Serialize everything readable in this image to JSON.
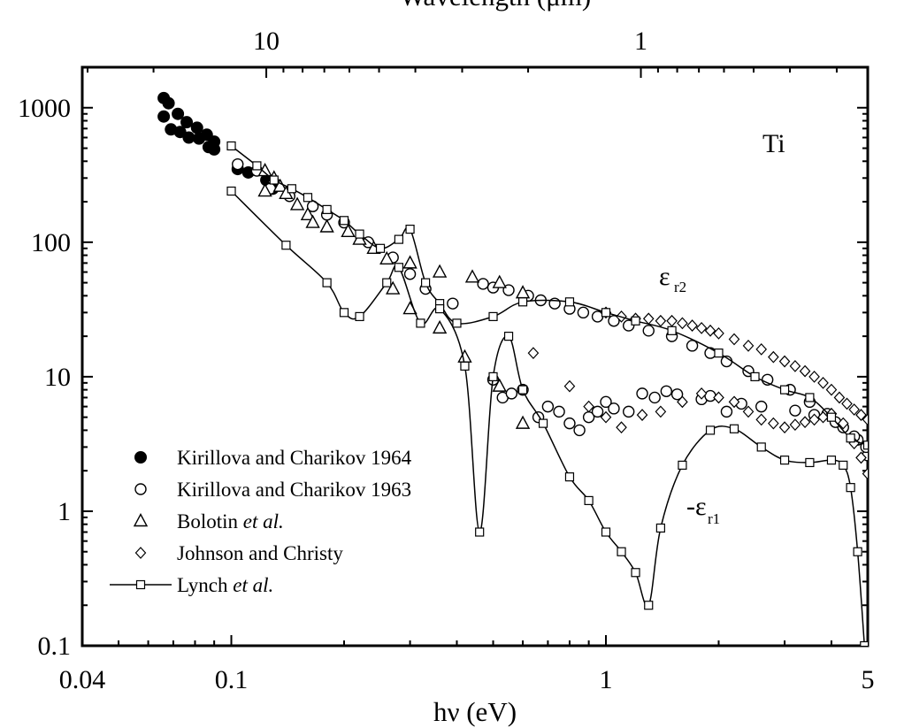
{
  "chart_data": {
    "type": "scatter",
    "title": "",
    "element_label": "Ti",
    "xlabel": "hν (eV)",
    "x2label": "Wavelength (μm)",
    "ylabel": "",
    "xscale": "log",
    "yscale": "log",
    "xlim": [
      0.04,
      5
    ],
    "ylim": [
      0.1,
      2000
    ],
    "x_ticks": [
      {
        "value": 0.04,
        "label": "0.04"
      },
      {
        "value": 0.1,
        "label": "0.1"
      },
      {
        "value": 1,
        "label": "1"
      },
      {
        "value": 5,
        "label": "5"
      }
    ],
    "x2_ticks": [
      {
        "value": 10,
        "label": "10"
      },
      {
        "value": 1,
        "label": "1"
      }
    ],
    "y_ticks": [
      {
        "value": 0.1,
        "label": "0.1"
      },
      {
        "value": 1,
        "label": "1"
      },
      {
        "value": 10,
        "label": "10"
      },
      {
        "value": 100,
        "label": "100"
      },
      {
        "value": 1000,
        "label": "1000"
      }
    ],
    "annotations": {
      "eps_r2": {
        "base": "ε",
        "sub": "r2"
      },
      "neg_eps_r1": {
        "base": "-ε",
        "sub": "r1"
      }
    },
    "legend_position": "lower-left",
    "series": [
      {
        "name": "Kirillova and Charikov 1964",
        "marker": "filled-circle",
        "line": false,
        "points": [
          [
            0.066,
            1180
          ],
          [
            0.068,
            1080
          ],
          [
            0.072,
            900
          ],
          [
            0.076,
            780
          ],
          [
            0.081,
            710
          ],
          [
            0.086,
            630
          ],
          [
            0.09,
            560
          ],
          [
            0.066,
            860
          ],
          [
            0.069,
            690
          ],
          [
            0.073,
            660
          ],
          [
            0.077,
            600
          ],
          [
            0.082,
            590
          ],
          [
            0.087,
            510
          ],
          [
            0.09,
            490
          ],
          [
            0.104,
            350
          ],
          [
            0.111,
            330
          ],
          [
            0.124,
            290
          ],
          [
            0.129,
            250
          ]
        ]
      },
      {
        "name": "Kirillova and Charikov 1963",
        "marker": "open-circle",
        "line": false,
        "points": [
          [
            0.104,
            380
          ],
          [
            0.117,
            340
          ],
          [
            0.127,
            250
          ],
          [
            0.143,
            220
          ],
          [
            0.165,
            185
          ],
          [
            0.18,
            160
          ],
          [
            0.2,
            140
          ],
          [
            0.232,
            100
          ],
          [
            0.27,
            77
          ],
          [
            0.3,
            58
          ],
          [
            0.33,
            45
          ],
          [
            0.39,
            35
          ],
          [
            0.47,
            49
          ],
          [
            0.5,
            46
          ],
          [
            0.55,
            44
          ],
          [
            0.62,
            40
          ],
          [
            0.67,
            37
          ],
          [
            0.73,
            35
          ],
          [
            0.8,
            32
          ],
          [
            0.87,
            30
          ],
          [
            0.95,
            28
          ],
          [
            1.05,
            26
          ],
          [
            1.15,
            24
          ],
          [
            1.3,
            22
          ],
          [
            1.5,
            20
          ],
          [
            1.7,
            17
          ],
          [
            1.9,
            15
          ],
          [
            2.1,
            13
          ],
          [
            2.4,
            11
          ],
          [
            2.7,
            9.5
          ],
          [
            3.1,
            8
          ],
          [
            3.5,
            6.5
          ],
          [
            3.9,
            5.3
          ],
          [
            4.3,
            4.2
          ],
          [
            4.7,
            3.4
          ],
          [
            5,
            2.6
          ],
          [
            0.5,
            9.5
          ],
          [
            0.53,
            7
          ],
          [
            0.56,
            7.5
          ],
          [
            0.6,
            8
          ],
          [
            0.66,
            5
          ],
          [
            0.7,
            6
          ],
          [
            0.75,
            5.5
          ],
          [
            0.8,
            4.5
          ],
          [
            0.85,
            4
          ],
          [
            0.9,
            5
          ],
          [
            0.95,
            5.5
          ],
          [
            1.0,
            6.5
          ],
          [
            1.05,
            5.8
          ],
          [
            1.15,
            5.5
          ],
          [
            1.25,
            7.5
          ],
          [
            1.35,
            7
          ],
          [
            1.45,
            7.8
          ],
          [
            1.55,
            7.4
          ],
          [
            1.8,
            6.8
          ],
          [
            1.9,
            7.2
          ],
          [
            2.1,
            5.5
          ],
          [
            2.3,
            6.3
          ],
          [
            2.6,
            6
          ],
          [
            3.2,
            5.6
          ],
          [
            3.6,
            5.2
          ],
          [
            4.1,
            4.6
          ],
          [
            4.6,
            3.6
          ],
          [
            4.95,
            3
          ]
        ]
      },
      {
        "name": "Bolotin et al.",
        "marker": "open-triangle",
        "line": false,
        "points": [
          [
            0.123,
            340
          ],
          [
            0.123,
            240
          ],
          [
            0.13,
            300
          ],
          [
            0.135,
            260
          ],
          [
            0.14,
            230
          ],
          [
            0.15,
            190
          ],
          [
            0.16,
            160
          ],
          [
            0.165,
            140
          ],
          [
            0.18,
            130
          ],
          [
            0.205,
            120
          ],
          [
            0.22,
            105
          ],
          [
            0.24,
            90
          ],
          [
            0.26,
            75
          ],
          [
            0.27,
            45
          ],
          [
            0.3,
            70
          ],
          [
            0.3,
            32
          ],
          [
            0.36,
            60
          ],
          [
            0.36,
            23
          ],
          [
            0.44,
            55
          ],
          [
            0.42,
            14
          ],
          [
            0.52,
            50
          ],
          [
            0.52,
            8.5
          ],
          [
            0.6,
            42
          ],
          [
            0.6,
            4.5
          ]
        ]
      },
      {
        "name": "Johnson and Christy",
        "marker": "open-diamond",
        "line": false,
        "points": [
          [
            0.64,
            15
          ],
          [
            0.8,
            8.5
          ],
          [
            0.9,
            6
          ],
          [
            1.0,
            5
          ],
          [
            1.1,
            4.2
          ],
          [
            1.25,
            5.2
          ],
          [
            1.4,
            5.5
          ],
          [
            1.6,
            6.5
          ],
          [
            1.8,
            7.5
          ],
          [
            2.0,
            7
          ],
          [
            2.2,
            6.5
          ],
          [
            2.4,
            5.5
          ],
          [
            2.6,
            4.8
          ],
          [
            2.8,
            4.5
          ],
          [
            3.0,
            4.2
          ],
          [
            3.2,
            4.4
          ],
          [
            3.4,
            4.6
          ],
          [
            3.6,
            4.8
          ],
          [
            3.8,
            5
          ],
          [
            4.0,
            5.3
          ],
          [
            4.3,
            4.5
          ],
          [
            4.6,
            3.2
          ],
          [
            4.8,
            2.5
          ],
          [
            5,
            1.9
          ],
          [
            1.0,
            30
          ],
          [
            1.1,
            28
          ],
          [
            1.2,
            27
          ],
          [
            1.3,
            27
          ],
          [
            1.4,
            26
          ],
          [
            1.5,
            26
          ],
          [
            1.6,
            25
          ],
          [
            1.7,
            24
          ],
          [
            1.8,
            23
          ],
          [
            1.9,
            22
          ],
          [
            2.0,
            21
          ],
          [
            2.2,
            19
          ],
          [
            2.4,
            17
          ],
          [
            2.6,
            16
          ],
          [
            2.8,
            14
          ],
          [
            3.0,
            13
          ],
          [
            3.2,
            12
          ],
          [
            3.4,
            11
          ],
          [
            3.6,
            10
          ],
          [
            3.8,
            9
          ],
          [
            4.0,
            8
          ],
          [
            4.2,
            7
          ],
          [
            4.4,
            6.3
          ],
          [
            4.6,
            5.7
          ],
          [
            4.8,
            5.2
          ],
          [
            5,
            4.8
          ]
        ]
      },
      {
        "name": "Lynch et al.",
        "marker": "open-square",
        "line": true,
        "curves": [
          {
            "id": "eps_r2",
            "points": [
              [
                0.1,
                520
              ],
              [
                0.117,
                370
              ],
              [
                0.13,
                290
              ],
              [
                0.145,
                250
              ],
              [
                0.16,
                215
              ],
              [
                0.18,
                175
              ],
              [
                0.2,
                145
              ],
              [
                0.22,
                115
              ],
              [
                0.25,
                90
              ],
              [
                0.28,
                105
              ],
              [
                0.3,
                125
              ],
              [
                0.33,
                50
              ],
              [
                0.36,
                35
              ],
              [
                0.4,
                25
              ],
              [
                0.5,
                28
              ],
              [
                0.6,
                36
              ],
              [
                0.8,
                36
              ],
              [
                1.0,
                30
              ],
              [
                1.2,
                26
              ],
              [
                1.5,
                22
              ],
              [
                2.0,
                15
              ],
              [
                2.5,
                10
              ],
              [
                3.0,
                8
              ],
              [
                3.5,
                7
              ],
              [
                4.0,
                5
              ],
              [
                4.5,
                3.5
              ],
              [
                5,
                3.1
              ]
            ]
          },
          {
            "id": "neg_eps_r1",
            "points": [
              [
                0.1,
                240
              ],
              [
                0.14,
                95
              ],
              [
                0.18,
                50
              ],
              [
                0.2,
                30
              ],
              [
                0.22,
                28
              ],
              [
                0.26,
                50
              ],
              [
                0.28,
                65
              ],
              [
                0.32,
                25
              ],
              [
                0.36,
                32
              ],
              [
                0.42,
                12
              ],
              [
                0.46,
                0.7
              ],
              [
                0.5,
                10
              ],
              [
                0.55,
                20
              ],
              [
                0.6,
                8
              ],
              [
                0.68,
                4.5
              ],
              [
                0.8,
                1.8
              ],
              [
                0.9,
                1.2
              ],
              [
                1.0,
                0.7
              ],
              [
                1.1,
                0.5
              ],
              [
                1.2,
                0.35
              ],
              [
                1.3,
                0.2
              ],
              [
                1.4,
                0.75
              ],
              [
                1.6,
                2.2
              ],
              [
                1.9,
                4
              ],
              [
                2.2,
                4.1
              ],
              [
                2.6,
                3
              ],
              [
                3.0,
                2.4
              ],
              [
                3.5,
                2.3
              ],
              [
                4.0,
                2.4
              ],
              [
                4.3,
                2.2
              ],
              [
                4.5,
                1.5
              ],
              [
                4.7,
                0.5
              ],
              [
                4.9,
                0.1
              ]
            ]
          }
        ]
      }
    ]
  }
}
